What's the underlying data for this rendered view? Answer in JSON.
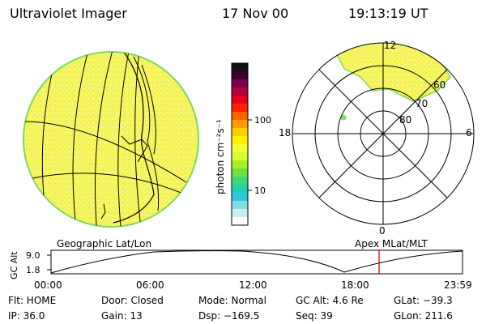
{
  "header": {
    "instrument": "Ultraviolet Imager",
    "date": "17 Nov 00",
    "time": "19:13:19 UT"
  },
  "earth_view": {
    "caption": "Geographic Lat/Lon"
  },
  "colorbar": {
    "unit_label": "photon cm⁻²s⁻¹",
    "ticks": [
      "100",
      "10"
    ],
    "colors": [
      "#111111",
      "#3a0030",
      "#7a0050",
      "#b3003a",
      "#e00020",
      "#ff2000",
      "#ff6000",
      "#ff9a00",
      "#ffcc00",
      "#ffef00",
      "#f7ff30",
      "#d8ff30",
      "#a8f020",
      "#70e040",
      "#40d870",
      "#20d0b0",
      "#30c8d8",
      "#80dce8",
      "#c8eef2",
      "#ffffff"
    ]
  },
  "polar_plot": {
    "caption": "Apex MLat/MLT",
    "mlt_labels": {
      "top": "12",
      "right": "6",
      "bottom": "0",
      "left": "18"
    },
    "lat_labels": [
      "60",
      "70",
      "80"
    ]
  },
  "orbit_plot": {
    "ylabel": "GC Alt",
    "y_ticks": [
      "9.0",
      "1.8"
    ],
    "x_ticks": [
      "00:00",
      "06:00",
      "12:00",
      "18:00",
      "23:59"
    ],
    "current_time_color": "#dd0000"
  },
  "status": {
    "row1": [
      "Flt: HOME",
      "Door: Closed",
      "Mode: Normal",
      "GC Alt: 4.6 Re",
      "GLat: −39.3"
    ],
    "row2": [
      "IP: 36.0",
      "Gain: 13",
      "Dsp: −169.5",
      "Seq: 39",
      "GLon: 211.6"
    ]
  },
  "colors": {
    "aurora_fill": "#f5f560",
    "aurora_edge": "#90e060"
  }
}
